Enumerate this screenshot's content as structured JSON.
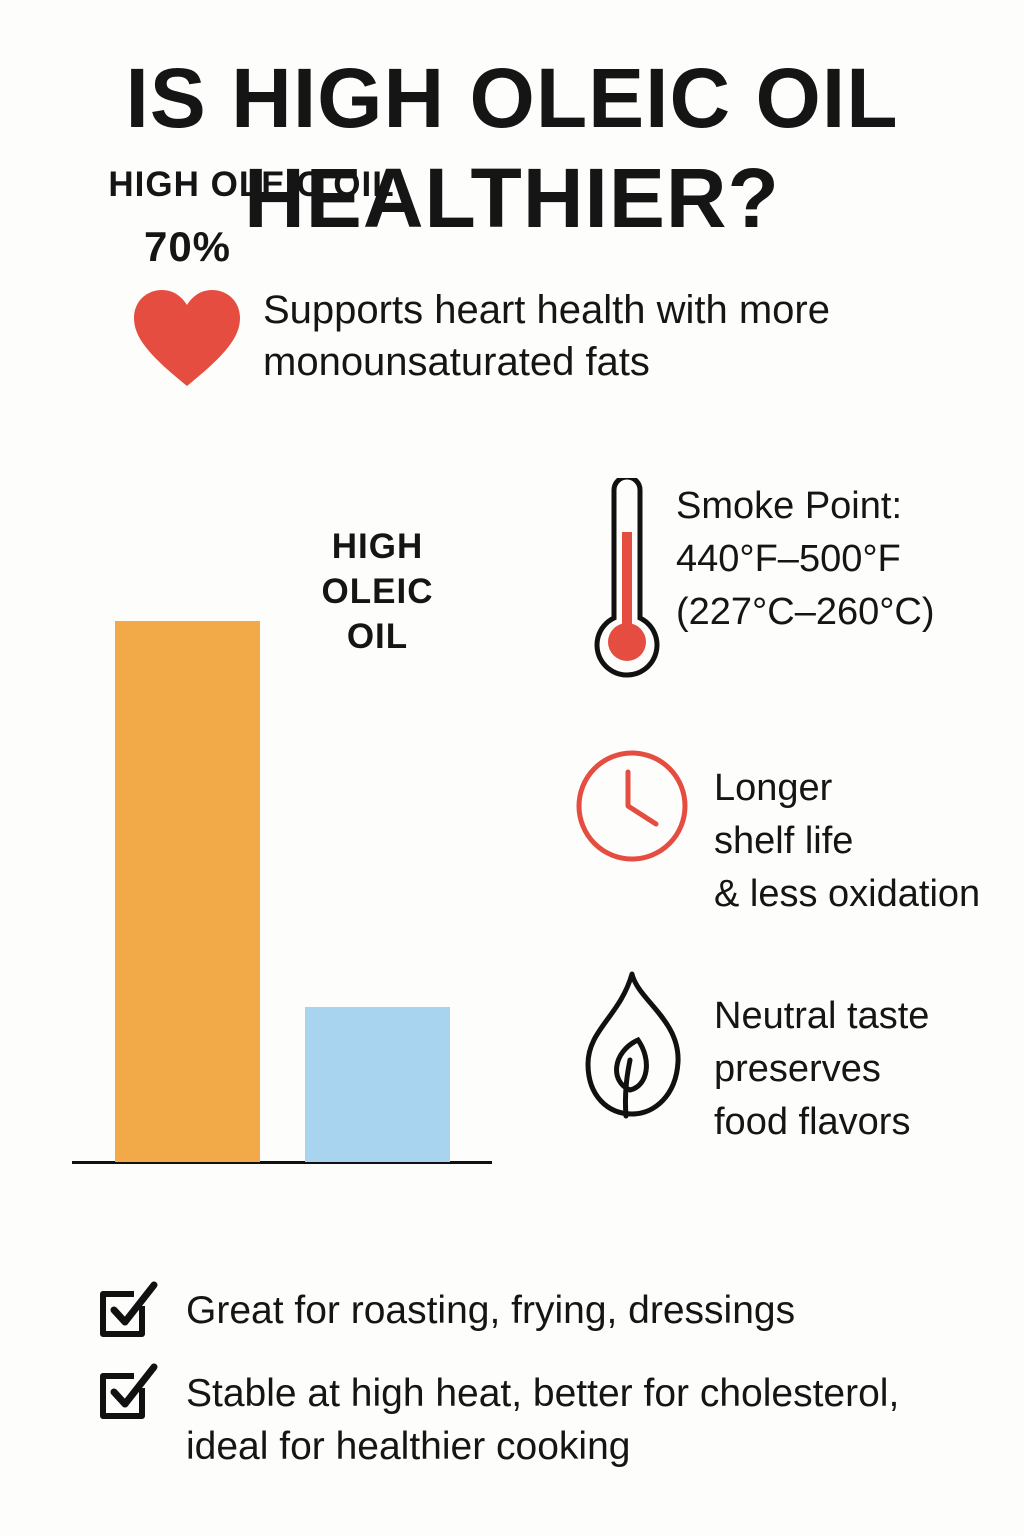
{
  "header": {
    "title": "IS HIGH OLEIC OIL HEALTHIER?"
  },
  "heart_note": "Supports heart health with more monounsaturated fats",
  "chart_data": {
    "type": "bar",
    "categories": [
      "HIGH OLEIC OIL",
      "HIGH OLEIC OIL"
    ],
    "values": [
      70,
      20
    ],
    "value_labels": [
      "70%",
      null
    ],
    "colors": [
      "#f2a947",
      "#a9d4ef"
    ]
  },
  "features": [
    {
      "lines": [
        "Smoke Point:",
        "440°F–500°F",
        "(227°C–260°C)"
      ]
    },
    {
      "lines": [
        "Longer",
        "shelf life",
        "& less oxidation"
      ]
    },
    {
      "lines": [
        "Neutral taste",
        "preserves",
        "food flavors"
      ]
    }
  ],
  "checklist": [
    "Great for roasting, frying, dressings",
    "Stable at high heat, better for cholesterol, ideal for healthier cooking"
  ]
}
